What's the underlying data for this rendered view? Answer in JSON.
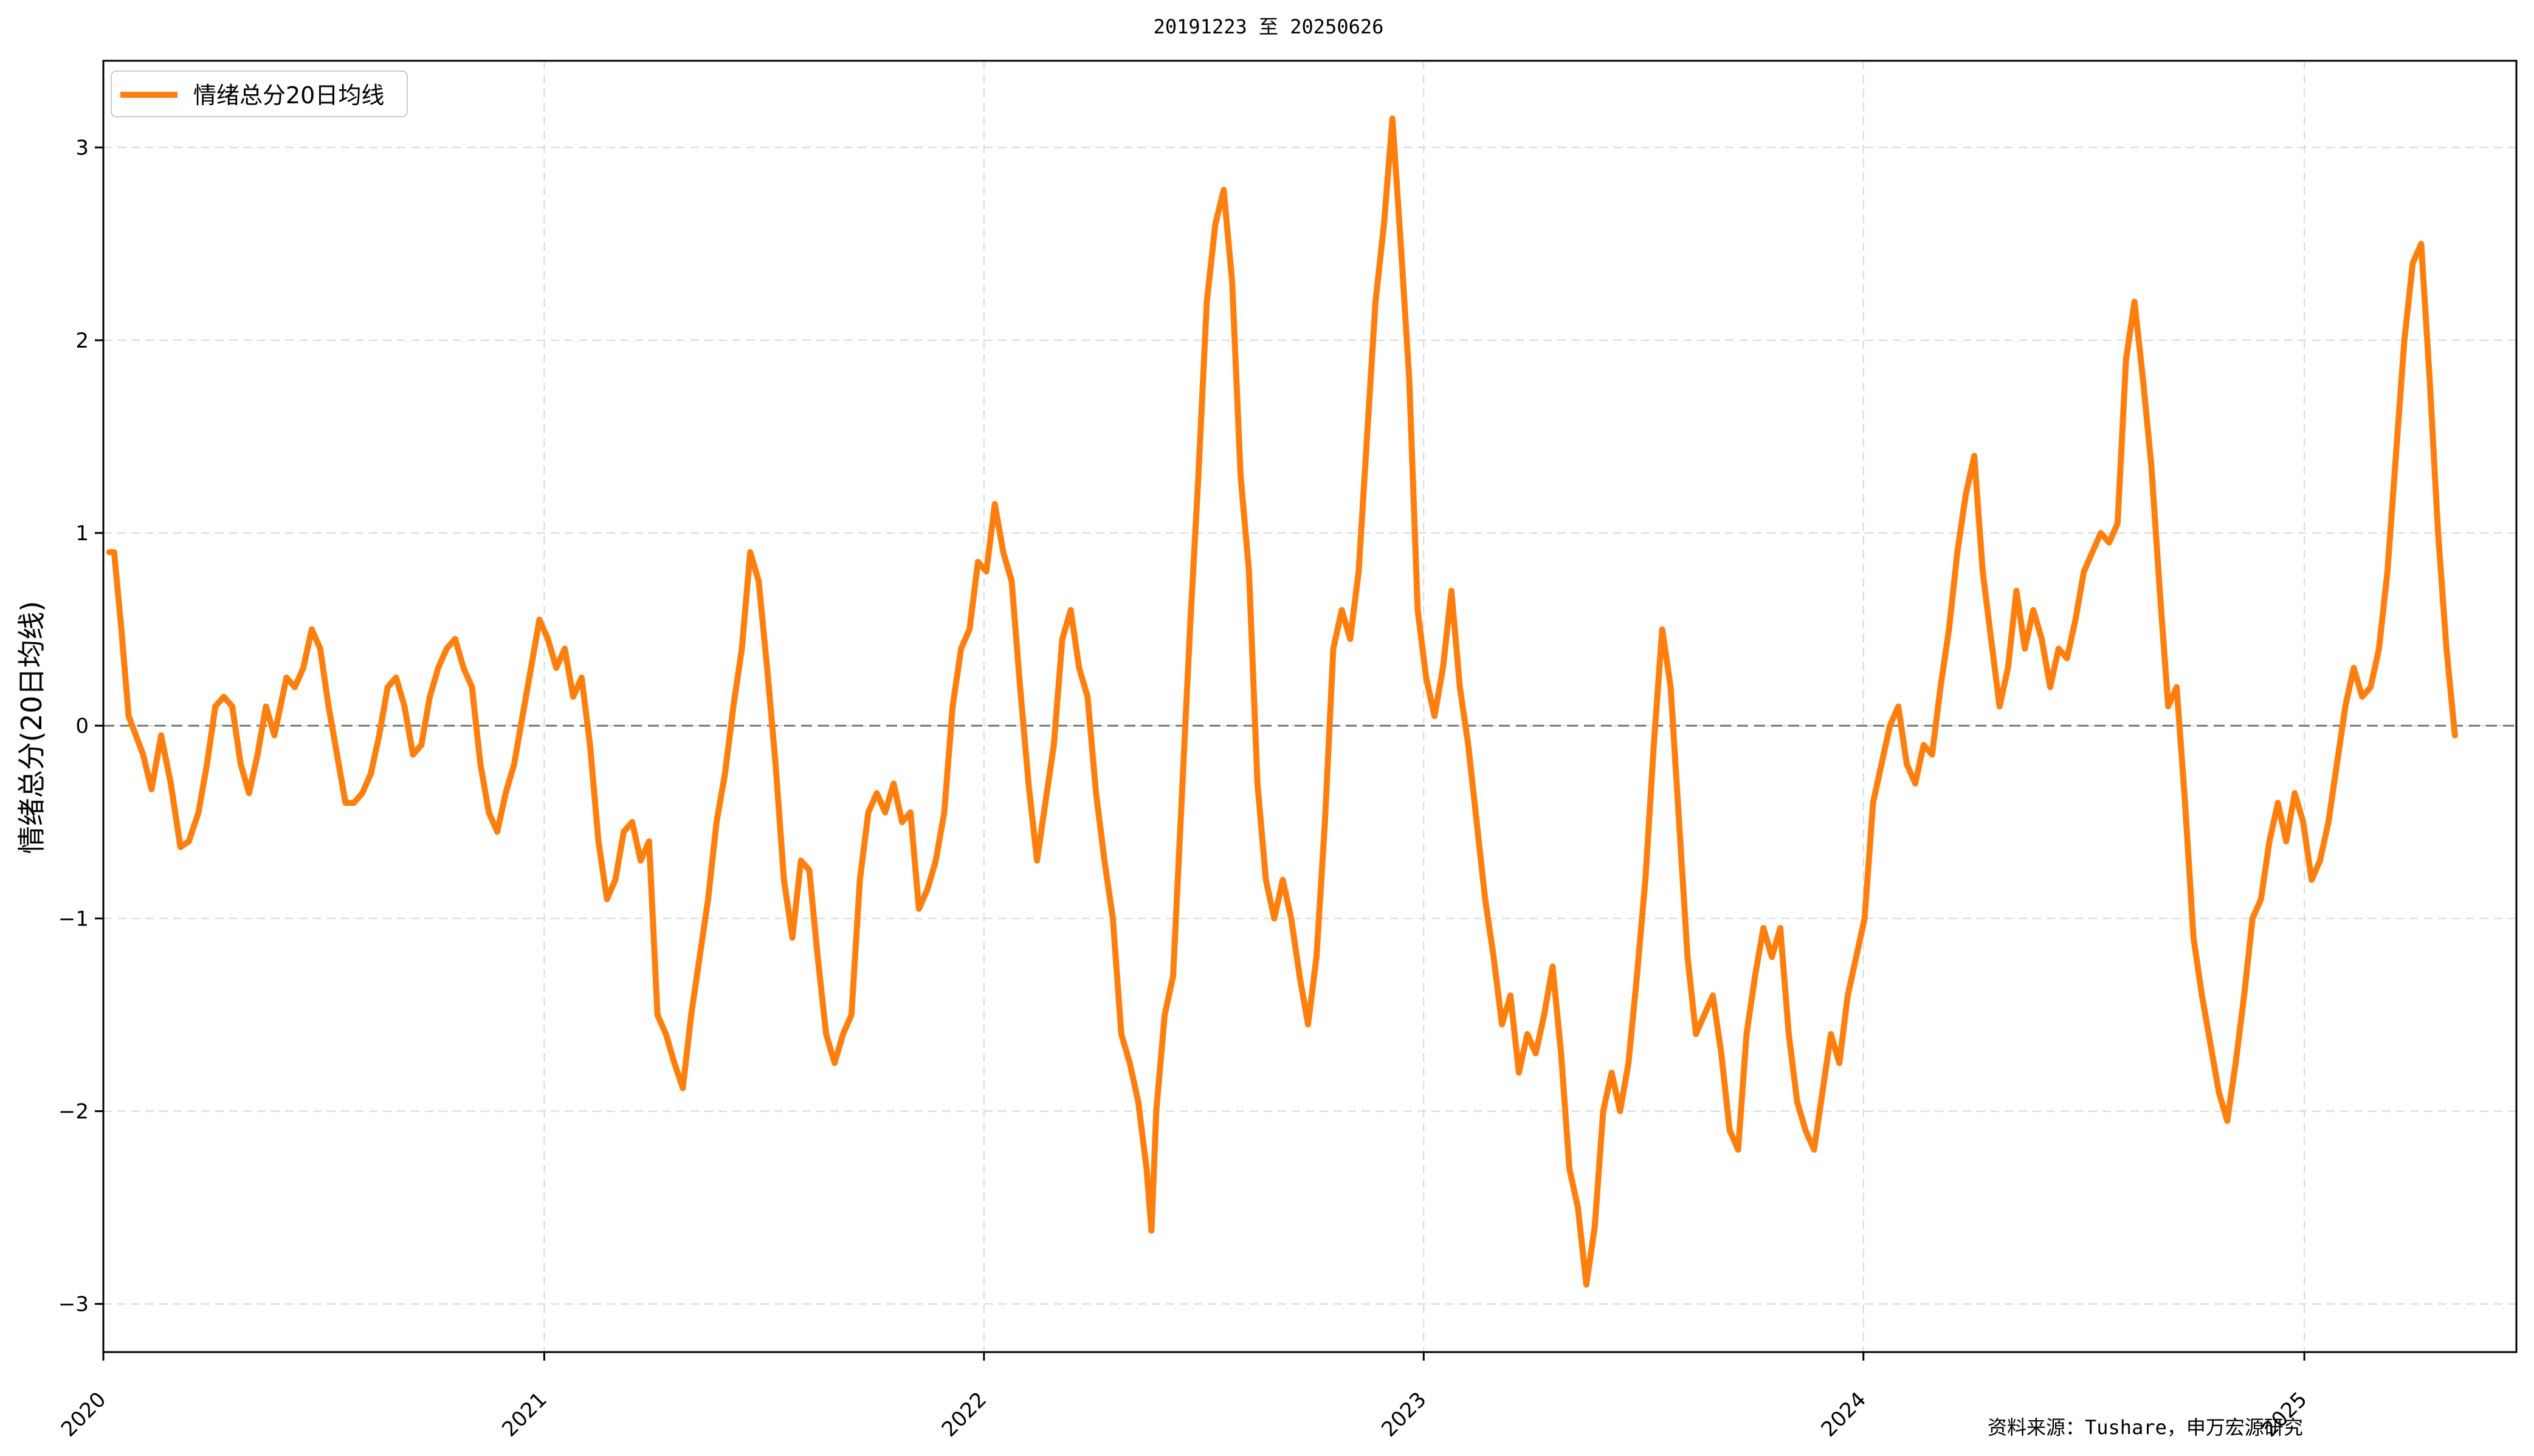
{
  "chart_data": {
    "type": "line",
    "title": "20191223 至 20250626",
    "xlabel": "",
    "ylabel": "情绪总分(20日均线)",
    "xlim": [
      "2020-01-01",
      "2025-06-26"
    ],
    "ylim": [
      -3.25,
      3.45
    ],
    "x_ticks": [
      "2020",
      "2021",
      "2022",
      "2023",
      "2024",
      "2025"
    ],
    "x_tick_dates": [
      "2020-01-01",
      "2021-01-01",
      "2022-01-01",
      "2023-01-01",
      "2024-01-01",
      "2025-01-01"
    ],
    "y_ticks": [
      -3,
      -2,
      -1,
      0,
      1,
      2,
      3
    ],
    "y_tick_labels": [
      "−3",
      "−2",
      "−1",
      "0",
      "1",
      "2",
      "3"
    ],
    "grid": true,
    "zero_line": true,
    "legend_position": "upper-left",
    "series": [
      {
        "name": "情绪总分20日均线",
        "color": "#ff7f0e",
        "points": [
          [
            "2020-01-06",
            0.9
          ],
          [
            "2020-01-10",
            0.9
          ],
          [
            "2020-01-16",
            0.5
          ],
          [
            "2020-01-22",
            0.05
          ],
          [
            "2020-02-03",
            -0.15
          ],
          [
            "2020-02-10",
            -0.33
          ],
          [
            "2020-02-18",
            -0.05
          ],
          [
            "2020-02-26",
            -0.3
          ],
          [
            "2020-03-05",
            -0.63
          ],
          [
            "2020-03-12",
            -0.6
          ],
          [
            "2020-03-20",
            -0.45
          ],
          [
            "2020-03-27",
            -0.2
          ],
          [
            "2020-04-03",
            0.1
          ],
          [
            "2020-04-10",
            0.15
          ],
          [
            "2020-04-17",
            0.1
          ],
          [
            "2020-04-24",
            -0.2
          ],
          [
            "2020-05-01",
            -0.35
          ],
          [
            "2020-05-08",
            -0.15
          ],
          [
            "2020-05-15",
            0.1
          ],
          [
            "2020-05-22",
            -0.05
          ],
          [
            "2020-06-01",
            0.25
          ],
          [
            "2020-06-08",
            0.2
          ],
          [
            "2020-06-15",
            0.3
          ],
          [
            "2020-06-22",
            0.5
          ],
          [
            "2020-06-29",
            0.4
          ],
          [
            "2020-07-06",
            0.1
          ],
          [
            "2020-07-13",
            -0.15
          ],
          [
            "2020-07-20",
            -0.4
          ],
          [
            "2020-07-27",
            -0.4
          ],
          [
            "2020-08-03",
            -0.35
          ],
          [
            "2020-08-10",
            -0.25
          ],
          [
            "2020-08-17",
            -0.05
          ],
          [
            "2020-08-24",
            0.2
          ],
          [
            "2020-08-31",
            0.25
          ],
          [
            "2020-09-07",
            0.1
          ],
          [
            "2020-09-14",
            -0.15
          ],
          [
            "2020-09-21",
            -0.1
          ],
          [
            "2020-09-28",
            0.15
          ],
          [
            "2020-10-05",
            0.3
          ],
          [
            "2020-10-12",
            0.4
          ],
          [
            "2020-10-19",
            0.45
          ],
          [
            "2020-10-26",
            0.3
          ],
          [
            "2020-11-02",
            0.2
          ],
          [
            "2020-11-09",
            -0.2
          ],
          [
            "2020-11-16",
            -0.45
          ],
          [
            "2020-11-23",
            -0.55
          ],
          [
            "2020-11-30",
            -0.35
          ],
          [
            "2020-12-07",
            -0.2
          ],
          [
            "2020-12-14",
            0.05
          ],
          [
            "2020-12-21",
            0.3
          ],
          [
            "2020-12-28",
            0.55
          ],
          [
            "2021-01-04",
            0.45
          ],
          [
            "2021-01-11",
            0.3
          ],
          [
            "2021-01-18",
            0.4
          ],
          [
            "2021-01-25",
            0.15
          ],
          [
            "2021-02-01",
            0.25
          ],
          [
            "2021-02-08",
            -0.1
          ],
          [
            "2021-02-15",
            -0.6
          ],
          [
            "2021-02-22",
            -0.9
          ],
          [
            "2021-03-01",
            -0.8
          ],
          [
            "2021-03-08",
            -0.55
          ],
          [
            "2021-03-15",
            -0.5
          ],
          [
            "2021-03-22",
            -0.7
          ],
          [
            "2021-03-29",
            -0.6
          ],
          [
            "2021-04-05",
            -1.5
          ],
          [
            "2021-04-12",
            -1.6
          ],
          [
            "2021-04-19",
            -1.75
          ],
          [
            "2021-04-26",
            -1.88
          ],
          [
            "2021-05-03",
            -1.5
          ],
          [
            "2021-05-10",
            -1.2
          ],
          [
            "2021-05-17",
            -0.9
          ],
          [
            "2021-05-24",
            -0.5
          ],
          [
            "2021-05-31",
            -0.25
          ],
          [
            "2021-06-07",
            0.1
          ],
          [
            "2021-06-14",
            0.4
          ],
          [
            "2021-06-21",
            0.9
          ],
          [
            "2021-06-28",
            0.75
          ],
          [
            "2021-07-05",
            0.3
          ],
          [
            "2021-07-12",
            -0.2
          ],
          [
            "2021-07-19",
            -0.8
          ],
          [
            "2021-07-26",
            -1.1
          ],
          [
            "2021-08-02",
            -0.7
          ],
          [
            "2021-08-09",
            -0.75
          ],
          [
            "2021-08-16",
            -1.2
          ],
          [
            "2021-08-23",
            -1.6
          ],
          [
            "2021-08-30",
            -1.75
          ],
          [
            "2021-09-06",
            -1.6
          ],
          [
            "2021-09-13",
            -1.5
          ],
          [
            "2021-09-20",
            -0.8
          ],
          [
            "2021-09-27",
            -0.45
          ],
          [
            "2021-10-04",
            -0.35
          ],
          [
            "2021-10-11",
            -0.45
          ],
          [
            "2021-10-18",
            -0.3
          ],
          [
            "2021-10-25",
            -0.5
          ],
          [
            "2021-11-01",
            -0.45
          ],
          [
            "2021-11-08",
            -0.95
          ],
          [
            "2021-11-15",
            -0.85
          ],
          [
            "2021-11-22",
            -0.7
          ],
          [
            "2021-11-29",
            -0.45
          ],
          [
            "2021-12-06",
            0.1
          ],
          [
            "2021-12-13",
            0.4
          ],
          [
            "2021-12-20",
            0.5
          ],
          [
            "2021-12-27",
            0.85
          ],
          [
            "2022-01-03",
            0.8
          ],
          [
            "2022-01-10",
            1.15
          ],
          [
            "2022-01-17",
            0.9
          ],
          [
            "2022-01-24",
            0.75
          ],
          [
            "2022-01-31",
            0.2
          ],
          [
            "2022-02-07",
            -0.3
          ],
          [
            "2022-02-14",
            -0.7
          ],
          [
            "2022-02-21",
            -0.4
          ],
          [
            "2022-02-28",
            -0.1
          ],
          [
            "2022-03-07",
            0.45
          ],
          [
            "2022-03-14",
            0.6
          ],
          [
            "2022-03-21",
            0.3
          ],
          [
            "2022-03-28",
            0.15
          ],
          [
            "2022-04-04",
            -0.35
          ],
          [
            "2022-04-11",
            -0.7
          ],
          [
            "2022-04-18",
            -1.0
          ],
          [
            "2022-04-25",
            -1.6
          ],
          [
            "2022-05-02",
            -1.75
          ],
          [
            "2022-05-09",
            -1.95
          ],
          [
            "2022-05-16",
            -2.3
          ],
          [
            "2022-05-20",
            -2.62
          ],
          [
            "2022-05-24",
            -2.0
          ],
          [
            "2022-05-31",
            -1.5
          ],
          [
            "2022-06-07",
            -1.3
          ],
          [
            "2022-06-14",
            -0.4
          ],
          [
            "2022-06-21",
            0.5
          ],
          [
            "2022-06-28",
            1.3
          ],
          [
            "2022-07-05",
            2.2
          ],
          [
            "2022-07-12",
            2.6
          ],
          [
            "2022-07-19",
            2.78
          ],
          [
            "2022-07-26",
            2.3
          ],
          [
            "2022-08-02",
            1.3
          ],
          [
            "2022-08-09",
            0.8
          ],
          [
            "2022-08-16",
            -0.3
          ],
          [
            "2022-08-23",
            -0.8
          ],
          [
            "2022-08-30",
            -1.0
          ],
          [
            "2022-09-06",
            -0.8
          ],
          [
            "2022-09-13",
            -1.0
          ],
          [
            "2022-09-20",
            -1.3
          ],
          [
            "2022-09-27",
            -1.55
          ],
          [
            "2022-10-04",
            -1.2
          ],
          [
            "2022-10-11",
            -0.5
          ],
          [
            "2022-10-18",
            0.4
          ],
          [
            "2022-10-25",
            0.6
          ],
          [
            "2022-11-01",
            0.45
          ],
          [
            "2022-11-08",
            0.8
          ],
          [
            "2022-11-15",
            1.5
          ],
          [
            "2022-11-22",
            2.2
          ],
          [
            "2022-11-29",
            2.6
          ],
          [
            "2022-12-06",
            3.15
          ],
          [
            "2022-12-13",
            2.5
          ],
          [
            "2022-12-20",
            1.8
          ],
          [
            "2022-12-27",
            0.6
          ],
          [
            "2023-01-03",
            0.25
          ],
          [
            "2023-01-10",
            0.05
          ],
          [
            "2023-01-17",
            0.3
          ],
          [
            "2023-01-24",
            0.7
          ],
          [
            "2023-01-31",
            0.2
          ],
          [
            "2023-02-07",
            -0.1
          ],
          [
            "2023-02-14",
            -0.5
          ],
          [
            "2023-02-21",
            -0.9
          ],
          [
            "2023-02-28",
            -1.2
          ],
          [
            "2023-03-07",
            -1.55
          ],
          [
            "2023-03-14",
            -1.4
          ],
          [
            "2023-03-21",
            -1.8
          ],
          [
            "2023-03-28",
            -1.6
          ],
          [
            "2023-04-04",
            -1.7
          ],
          [
            "2023-04-11",
            -1.5
          ],
          [
            "2023-04-18",
            -1.25
          ],
          [
            "2023-04-25",
            -1.7
          ],
          [
            "2023-05-02",
            -2.3
          ],
          [
            "2023-05-09",
            -2.5
          ],
          [
            "2023-05-16",
            -2.9
          ],
          [
            "2023-05-23",
            -2.6
          ],
          [
            "2023-05-30",
            -2.0
          ],
          [
            "2023-06-06",
            -1.8
          ],
          [
            "2023-06-13",
            -2.0
          ],
          [
            "2023-06-20",
            -1.75
          ],
          [
            "2023-06-27",
            -1.3
          ],
          [
            "2023-07-04",
            -0.8
          ],
          [
            "2023-07-11",
            -0.1
          ],
          [
            "2023-07-18",
            0.5
          ],
          [
            "2023-07-25",
            0.2
          ],
          [
            "2023-08-01",
            -0.5
          ],
          [
            "2023-08-08",
            -1.2
          ],
          [
            "2023-08-15",
            -1.6
          ],
          [
            "2023-08-22",
            -1.5
          ],
          [
            "2023-08-29",
            -1.4
          ],
          [
            "2023-09-05",
            -1.7
          ],
          [
            "2023-09-12",
            -2.1
          ],
          [
            "2023-09-19",
            -2.2
          ],
          [
            "2023-09-26",
            -1.6
          ],
          [
            "2023-10-03",
            -1.3
          ],
          [
            "2023-10-10",
            -1.05
          ],
          [
            "2023-10-17",
            -1.2
          ],
          [
            "2023-10-24",
            -1.05
          ],
          [
            "2023-10-31",
            -1.6
          ],
          [
            "2023-11-07",
            -1.95
          ],
          [
            "2023-11-14",
            -2.1
          ],
          [
            "2023-11-21",
            -2.2
          ],
          [
            "2023-11-28",
            -1.9
          ],
          [
            "2023-12-05",
            -1.6
          ],
          [
            "2023-12-12",
            -1.75
          ],
          [
            "2023-12-19",
            -1.4
          ],
          [
            "2023-12-26",
            -1.2
          ],
          [
            "2024-01-02",
            -1.0
          ],
          [
            "2024-01-09",
            -0.4
          ],
          [
            "2024-01-16",
            -0.2
          ],
          [
            "2024-01-23",
            0.0
          ],
          [
            "2024-01-30",
            0.1
          ],
          [
            "2024-02-06",
            -0.2
          ],
          [
            "2024-02-13",
            -0.3
          ],
          [
            "2024-02-20",
            -0.1
          ],
          [
            "2024-02-27",
            -0.15
          ],
          [
            "2024-03-05",
            0.2
          ],
          [
            "2024-03-12",
            0.5
          ],
          [
            "2024-03-19",
            0.9
          ],
          [
            "2024-03-26",
            1.2
          ],
          [
            "2024-04-02",
            1.4
          ],
          [
            "2024-04-09",
            0.8
          ],
          [
            "2024-04-16",
            0.45
          ],
          [
            "2024-04-23",
            0.1
          ],
          [
            "2024-04-30",
            0.3
          ],
          [
            "2024-05-07",
            0.7
          ],
          [
            "2024-05-14",
            0.4
          ],
          [
            "2024-05-21",
            0.6
          ],
          [
            "2024-05-28",
            0.45
          ],
          [
            "2024-06-04",
            0.2
          ],
          [
            "2024-06-11",
            0.4
          ],
          [
            "2024-06-18",
            0.35
          ],
          [
            "2024-06-25",
            0.55
          ],
          [
            "2024-07-02",
            0.8
          ],
          [
            "2024-07-09",
            0.9
          ],
          [
            "2024-07-16",
            1.0
          ],
          [
            "2024-07-23",
            0.95
          ],
          [
            "2024-07-30",
            1.05
          ],
          [
            "2024-08-06",
            1.9
          ],
          [
            "2024-08-13",
            2.2
          ],
          [
            "2024-08-20",
            1.8
          ],
          [
            "2024-08-27",
            1.35
          ],
          [
            "2024-09-03",
            0.7
          ],
          [
            "2024-09-10",
            0.1
          ],
          [
            "2024-09-17",
            0.2
          ],
          [
            "2024-09-24",
            -0.4
          ],
          [
            "2024-10-01",
            -1.1
          ],
          [
            "2024-10-08",
            -1.4
          ],
          [
            "2024-10-15",
            -1.65
          ],
          [
            "2024-10-22",
            -1.9
          ],
          [
            "2024-10-29",
            -2.05
          ],
          [
            "2024-11-05",
            -1.75
          ],
          [
            "2024-11-12",
            -1.4
          ],
          [
            "2024-11-19",
            -1.0
          ],
          [
            "2024-11-26",
            -0.9
          ],
          [
            "2024-12-03",
            -0.6
          ],
          [
            "2024-12-10",
            -0.4
          ],
          [
            "2024-12-17",
            -0.6
          ],
          [
            "2024-12-24",
            -0.35
          ],
          [
            "2024-12-31",
            -0.5
          ],
          [
            "2025-01-07",
            -0.8
          ],
          [
            "2025-01-14",
            -0.7
          ],
          [
            "2025-01-21",
            -0.5
          ],
          [
            "2025-01-28",
            -0.2
          ],
          [
            "2025-02-04",
            0.1
          ],
          [
            "2025-02-11",
            0.3
          ],
          [
            "2025-02-18",
            0.15
          ],
          [
            "2025-02-25",
            0.2
          ],
          [
            "2025-03-04",
            0.4
          ],
          [
            "2025-03-11",
            0.8
          ],
          [
            "2025-03-18",
            1.4
          ],
          [
            "2025-03-25",
            2.0
          ],
          [
            "2025-04-01",
            2.4
          ],
          [
            "2025-04-08",
            2.5
          ],
          [
            "2025-04-15",
            1.8
          ],
          [
            "2025-04-22",
            1.0
          ],
          [
            "2025-04-29",
            0.4
          ],
          [
            "2025-05-06",
            -0.05
          ]
        ]
      }
    ]
  },
  "source_note": "资料来源：Tushare，申万宏源研究"
}
